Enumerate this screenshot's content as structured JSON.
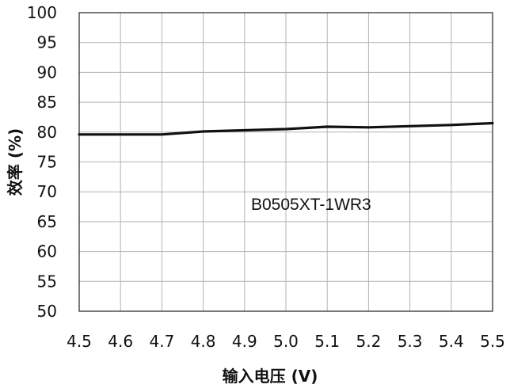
{
  "chart_data": {
    "type": "line",
    "xlabel": "输入电压 (V)",
    "ylabel": "效率 (%)",
    "xlim": [
      4.5,
      5.5
    ],
    "ylim": [
      50,
      100
    ],
    "x_ticks": [
      "4.5",
      "4.6",
      "4.7",
      "4.8",
      "4.9",
      "5.0",
      "5.1",
      "5.2",
      "5.3",
      "5.4",
      "5.5"
    ],
    "y_ticks": [
      "100",
      "95",
      "90",
      "85",
      "80",
      "75",
      "70",
      "65",
      "60",
      "55",
      "50"
    ],
    "grid": true,
    "annotation": "B0505XT-1WR3",
    "series": [
      {
        "color": "#111111",
        "x": [
          4.5,
          4.6,
          4.7,
          4.8,
          4.9,
          5.0,
          5.1,
          5.2,
          5.3,
          5.4,
          5.5
        ],
        "y": [
          79.6,
          79.6,
          79.6,
          80.1,
          80.3,
          80.5,
          80.9,
          80.8,
          81.0,
          81.2,
          81.5
        ]
      }
    ]
  }
}
